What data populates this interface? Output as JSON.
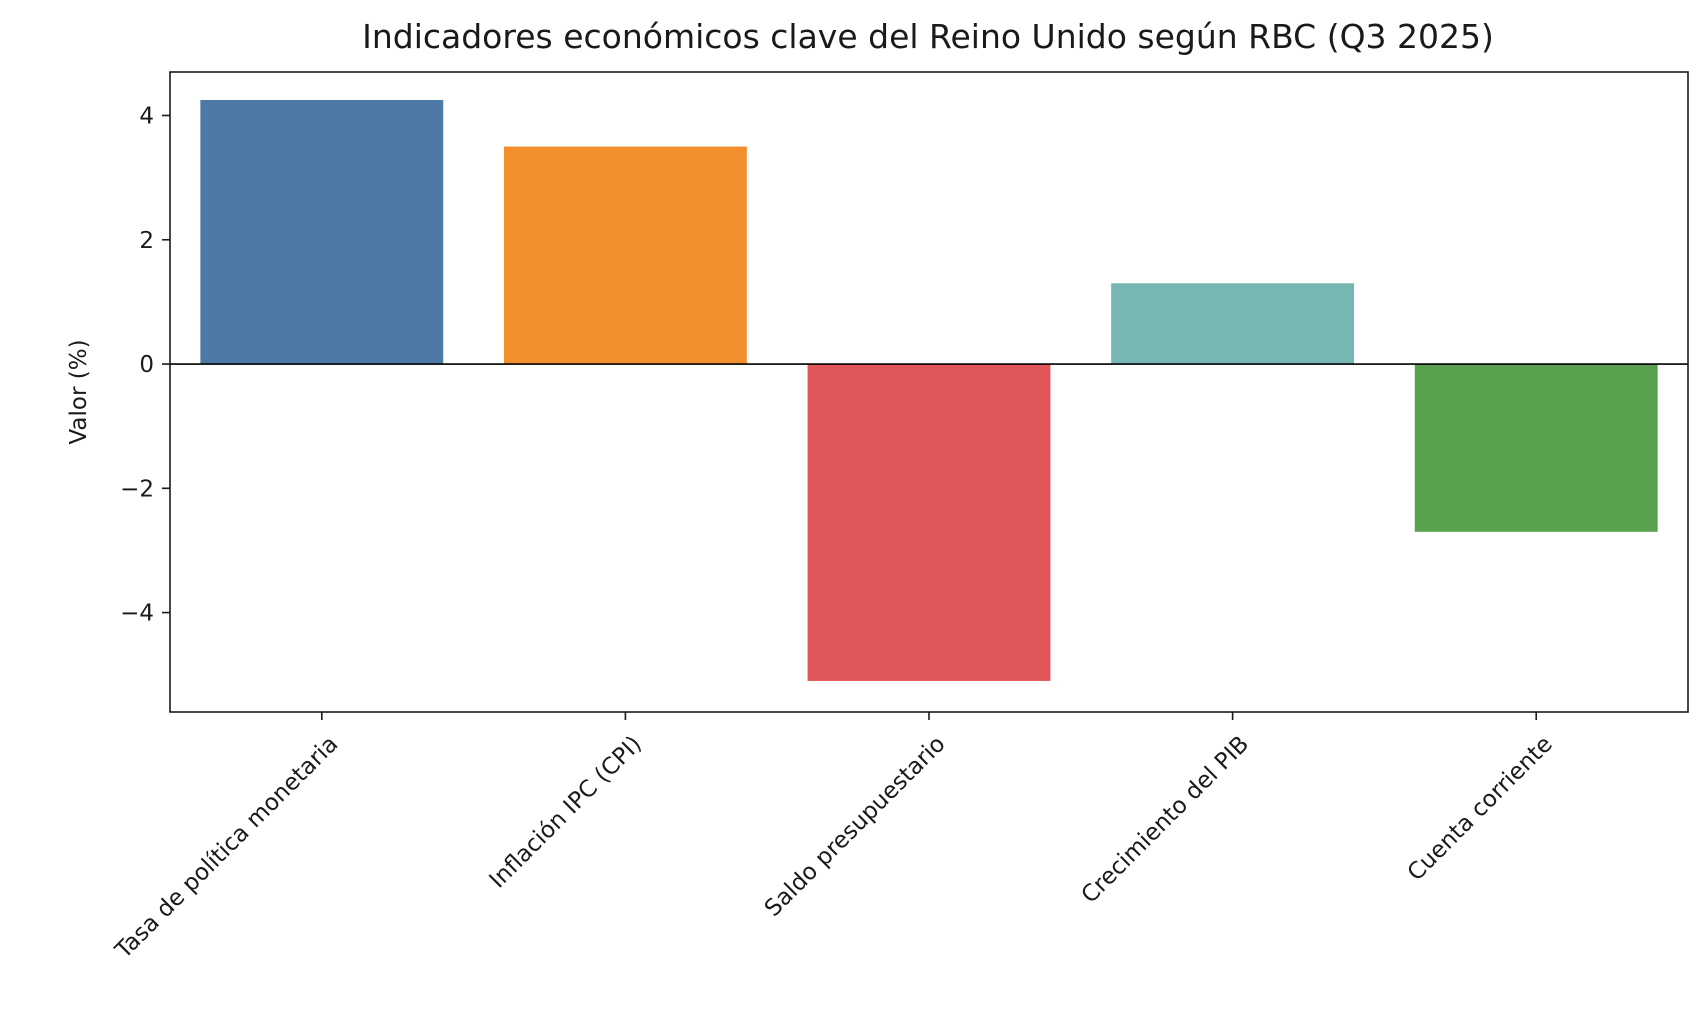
{
  "chart_data": {
    "type": "bar",
    "title": "Indicadores económicos clave del Reino Unido según RBC (Q3 2025)",
    "xlabel": "",
    "ylabel": "Valor (%)",
    "categories": [
      "Tasa de política monetaria",
      "Inflación IPC (CPI)",
      "Saldo presupuestario",
      "Crecimiento del PIB",
      "Cuenta corriente"
    ],
    "values": [
      4.25,
      3.5,
      -5.1,
      1.3,
      -2.7
    ],
    "colors": [
      "#4e79a7",
      "#f28e2b",
      "#e15759",
      "#76b7b2",
      "#59a14f"
    ],
    "ylim": [
      -5.6,
      4.7
    ],
    "yticks": [
      -4,
      -2,
      0,
      2,
      4
    ],
    "ytick_labels": [
      "−4",
      "−2",
      "0",
      "2",
      "4"
    ],
    "zero_line": true,
    "grid": false,
    "legend": "none",
    "xtick_rotation": -45
  }
}
